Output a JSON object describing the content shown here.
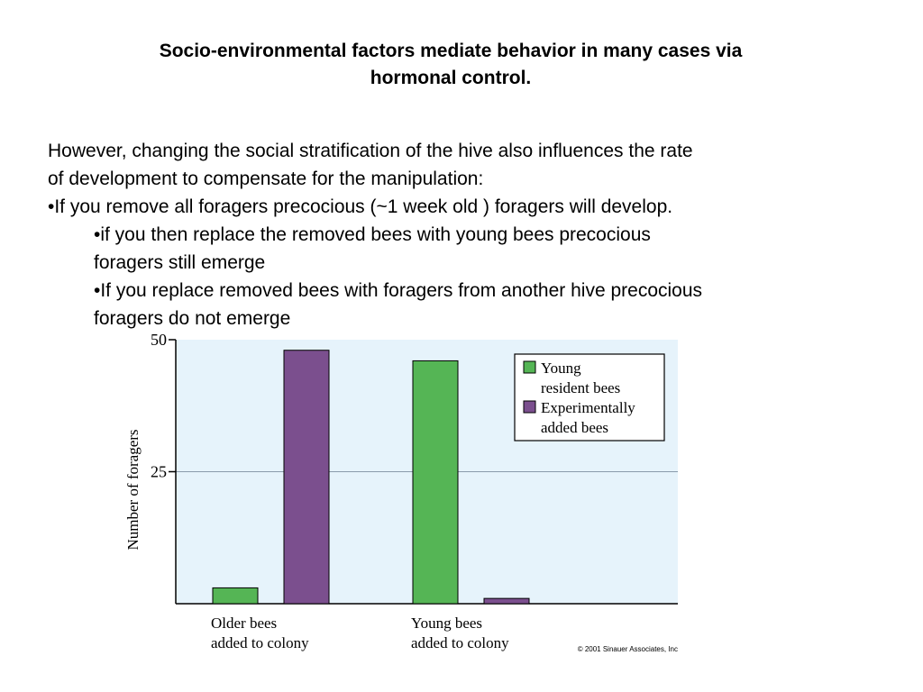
{
  "slide": {
    "title_line1": "Socio-environmental factors mediate behavior in many cases via",
    "title_line2": "hormonal control.",
    "paragraph_line1": "However, changing the social stratification of the hive also influences the rate",
    "paragraph_line2": "of development to compensate for the manipulation:",
    "bullet1": "•If you remove all foragers precocious (~1 week old ) foragers will develop.",
    "sub1_line1": "•if you then replace the removed bees with young bees precocious",
    "sub1_line2": "foragers still emerge",
    "sub2_line1": "•If you replace removed bees with foragers from another hive precocious",
    "sub2_line2": "foragers do not emerge"
  },
  "chart_data": {
    "type": "bar",
    "categories": [
      [
        "Older bees",
        "added to colony"
      ],
      [
        "Young bees",
        "added to colony"
      ]
    ],
    "series": [
      {
        "name": "Young resident bees",
        "legend_lines": [
          "Young",
          "resident bees"
        ],
        "color": "#55b555",
        "values": [
          3,
          46
        ]
      },
      {
        "name": "Experimentally added bees",
        "legend_lines": [
          "Experimentally",
          "added bees"
        ],
        "color": "#7b4f8e",
        "values": [
          48,
          1
        ]
      }
    ],
    "ylabel": "Number of foragers",
    "yticks": [
      25,
      50
    ],
    "ylim": [
      0,
      50
    ],
    "grid_line_at": 25,
    "background": "#e6f3fb",
    "legend_position": "top-right",
    "copyright": "© 2001 Sinauer Associates, Inc"
  }
}
